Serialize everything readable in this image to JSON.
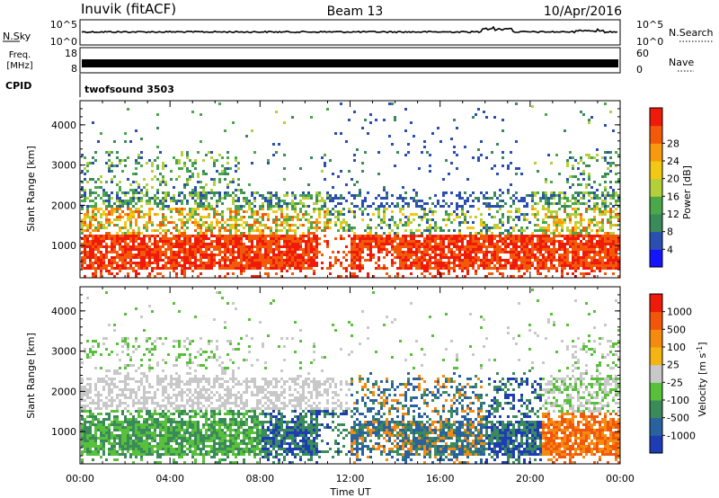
{
  "header": {
    "station": "Inuvik (fitACF)",
    "beam": "Beam 13",
    "date": "10/Apr/2016"
  },
  "summary_panels": {
    "nsky": {
      "label": "N.Sky",
      "tick_top": "10^5",
      "tick_bottom": "10^0"
    },
    "nsearch": {
      "label": "N.Search",
      "tick_top": "10^5",
      "tick_bottom": "10^0"
    },
    "freq": {
      "label_line1": "Freq.",
      "label_line2": "[MHz]",
      "tick_top": "18",
      "tick_bottom": "8"
    },
    "nave": {
      "label": "Nave",
      "tick_top": "60",
      "tick_bottom": "0"
    },
    "cpid": {
      "label": "CPID",
      "program": "twofsound 3503"
    }
  },
  "chart_data": [
    {
      "type": "heatmap",
      "name": "power",
      "ylabel": "Slant Range [km]",
      "xlabel": "Time UT",
      "ylim": [
        200,
        4600
      ],
      "xlim": [
        0,
        24
      ],
      "yticks": [
        1000,
        2000,
        3000,
        4000
      ],
      "xtick_labels": [
        "00:00",
        "04:00",
        "08:00",
        "12:00",
        "16:00",
        "20:00",
        "00:00"
      ],
      "colorbar": {
        "label": "Power [dB]",
        "ticks": [
          "4",
          "8",
          "12",
          "16",
          "20",
          "24",
          "28"
        ],
        "colors": [
          "#1414ff",
          "#2a4fb0",
          "#3a8a5a",
          "#4aa84a",
          "#b4cf3a",
          "#f2c814",
          "#f79a10",
          "#f25a0a",
          "#ef1a0a"
        ]
      }
    },
    {
      "type": "heatmap",
      "name": "velocity",
      "ylabel": "Slant Range [km]",
      "xlabel": "Time UT",
      "ylim": [
        200,
        4600
      ],
      "xlim": [
        0,
        24
      ],
      "yticks": [
        1000,
        2000,
        3000,
        4000
      ],
      "xtick_labels": [
        "00:00",
        "04:00",
        "08:00",
        "12:00",
        "16:00",
        "20:00",
        "00:00"
      ],
      "colorbar": {
        "label": "Velocity [m s",
        "label_sup": "-1",
        "label_end": "]",
        "ticks": [
          "1000",
          "500",
          "100",
          "25",
          "-25",
          "-100",
          "-500",
          "-1000"
        ],
        "colors": [
          "#1e3cb4",
          "#2a62a0",
          "#3a8a5a",
          "#58c03a",
          "#c8c8c8",
          "#f3b414",
          "#f58a10",
          "#f2560a",
          "#ef1a0a"
        ]
      }
    }
  ]
}
